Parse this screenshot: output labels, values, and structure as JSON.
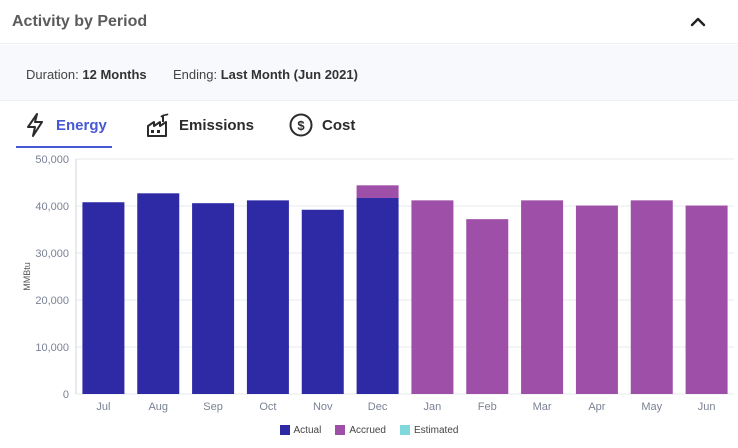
{
  "header": {
    "title": "Activity by Period"
  },
  "meta": {
    "duration_label": "Duration:",
    "duration_value": "12 Months",
    "ending_label": "Ending:",
    "ending_value": "Last Month (Jun 2021)"
  },
  "tabs": [
    {
      "label": "Energy",
      "icon": "lightning-icon",
      "active": true
    },
    {
      "label": "Emissions",
      "icon": "factory-icon",
      "active": false
    },
    {
      "label": "Cost",
      "icon": "dollar-coin-icon",
      "active": false
    }
  ],
  "colors": {
    "actual": "#2e2aa6",
    "accrued": "#9e4fa7",
    "estimated": "#7fd9dc",
    "accent": "#4658d6"
  },
  "chart_data": {
    "type": "bar",
    "stacked": true,
    "categories": [
      "Jul",
      "Aug",
      "Sep",
      "Oct",
      "Nov",
      "Dec",
      "Jan",
      "Feb",
      "Mar",
      "Apr",
      "May",
      "Jun"
    ],
    "series": [
      {
        "name": "Actual",
        "values": [
          40800,
          42700,
          40600,
          41200,
          39200,
          41700,
          0,
          0,
          0,
          0,
          0,
          0
        ]
      },
      {
        "name": "Accrued",
        "values": [
          0,
          0,
          0,
          0,
          0,
          2700,
          41200,
          37200,
          41200,
          40100,
          41200,
          40100
        ]
      },
      {
        "name": "Estimated",
        "values": [
          0,
          0,
          0,
          0,
          0,
          0,
          0,
          0,
          0,
          0,
          0,
          0
        ]
      }
    ],
    "ylabel": "MMBtu",
    "ylim": [
      0,
      50000
    ],
    "yticks": [
      0,
      10000,
      20000,
      30000,
      40000,
      50000
    ],
    "ytick_labels": [
      "0",
      "10,000",
      "20,000",
      "30,000",
      "40,000",
      "50,000"
    ],
    "grid": true,
    "legend": "bottom-center"
  }
}
